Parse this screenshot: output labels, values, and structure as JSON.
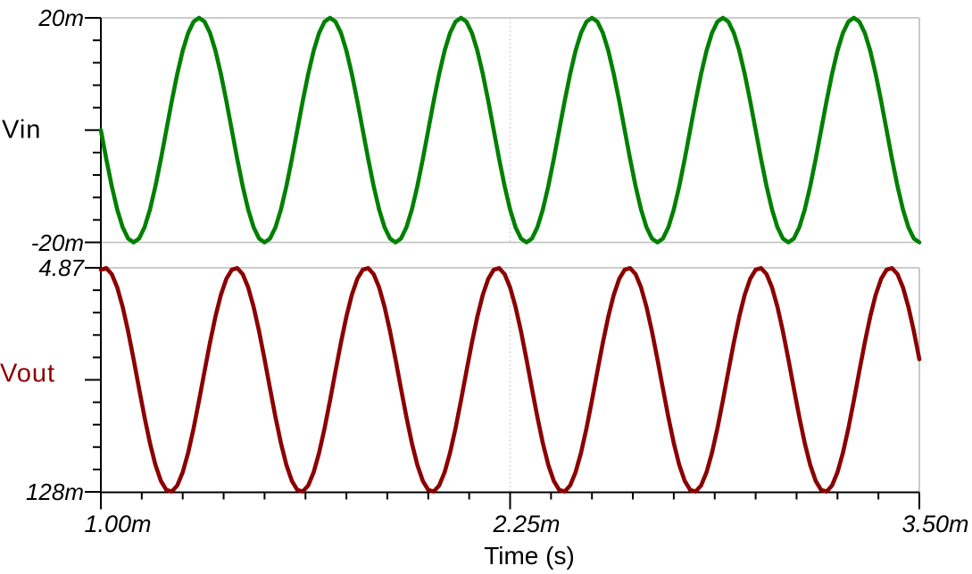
{
  "chart_data": {
    "type": "line",
    "title": "",
    "x_axis": {
      "title": "Time (s)",
      "tick_labels": [
        "1.00m",
        "2.25m",
        "3.50m"
      ],
      "tick_values_s": [
        0.001,
        0.00225,
        0.0035
      ],
      "range_s": [
        0.001,
        0.0035
      ],
      "minor_divisions": 20,
      "dotted_gridline_at_s": 0.00225
    },
    "panels": [
      {
        "ylabel": "Vin",
        "ylabel_color": "#000000",
        "y_axis": {
          "max_label": "20m",
          "min_label": "-20m",
          "range_v": [
            -0.02,
            0.02
          ],
          "minor_divisions": 10
        },
        "series": [
          {
            "name": "Vin",
            "color": "#008000",
            "waveform": "sine",
            "frequency_hz": 2500,
            "period_s": 0.0004,
            "amplitude_v": 0.02,
            "offset_v": 0,
            "phase_at_t0_deg": 180,
            "t0_s": 0.001,
            "peak_v": 0.02,
            "trough_v": -0.02,
            "first_trough_s": 0.0011,
            "first_peak_s": 0.0013,
            "cycles_shown": 6.25
          }
        ]
      },
      {
        "ylabel": "Vout",
        "ylabel_color": "#8b0000",
        "y_axis": {
          "max_label": "4.87",
          "min_label": "128m",
          "range_v": [
            0.128,
            4.87
          ],
          "minor_divisions": 10
        },
        "series": [
          {
            "name": "Vout",
            "color": "#8b0000",
            "waveform": "sine",
            "frequency_hz": 2500,
            "period_s": 0.0004,
            "amplitude_v": 2.371,
            "offset_v": 2.499,
            "phase_at_t0_deg": 79.4,
            "t0_s": 0.001,
            "peak_v": 4.87,
            "trough_v": 0.128,
            "first_peak_s": 0.001012,
            "first_trough_s": 0.001212,
            "cycles_shown": 6.25
          }
        ]
      }
    ],
    "style": {
      "background": "#ffffff",
      "axis_color": "#000000",
      "grid_solid_color": "#c5c5c5",
      "grid_dotted_color": "#cdcdcd",
      "legend_position": "left-of-axis"
    }
  }
}
